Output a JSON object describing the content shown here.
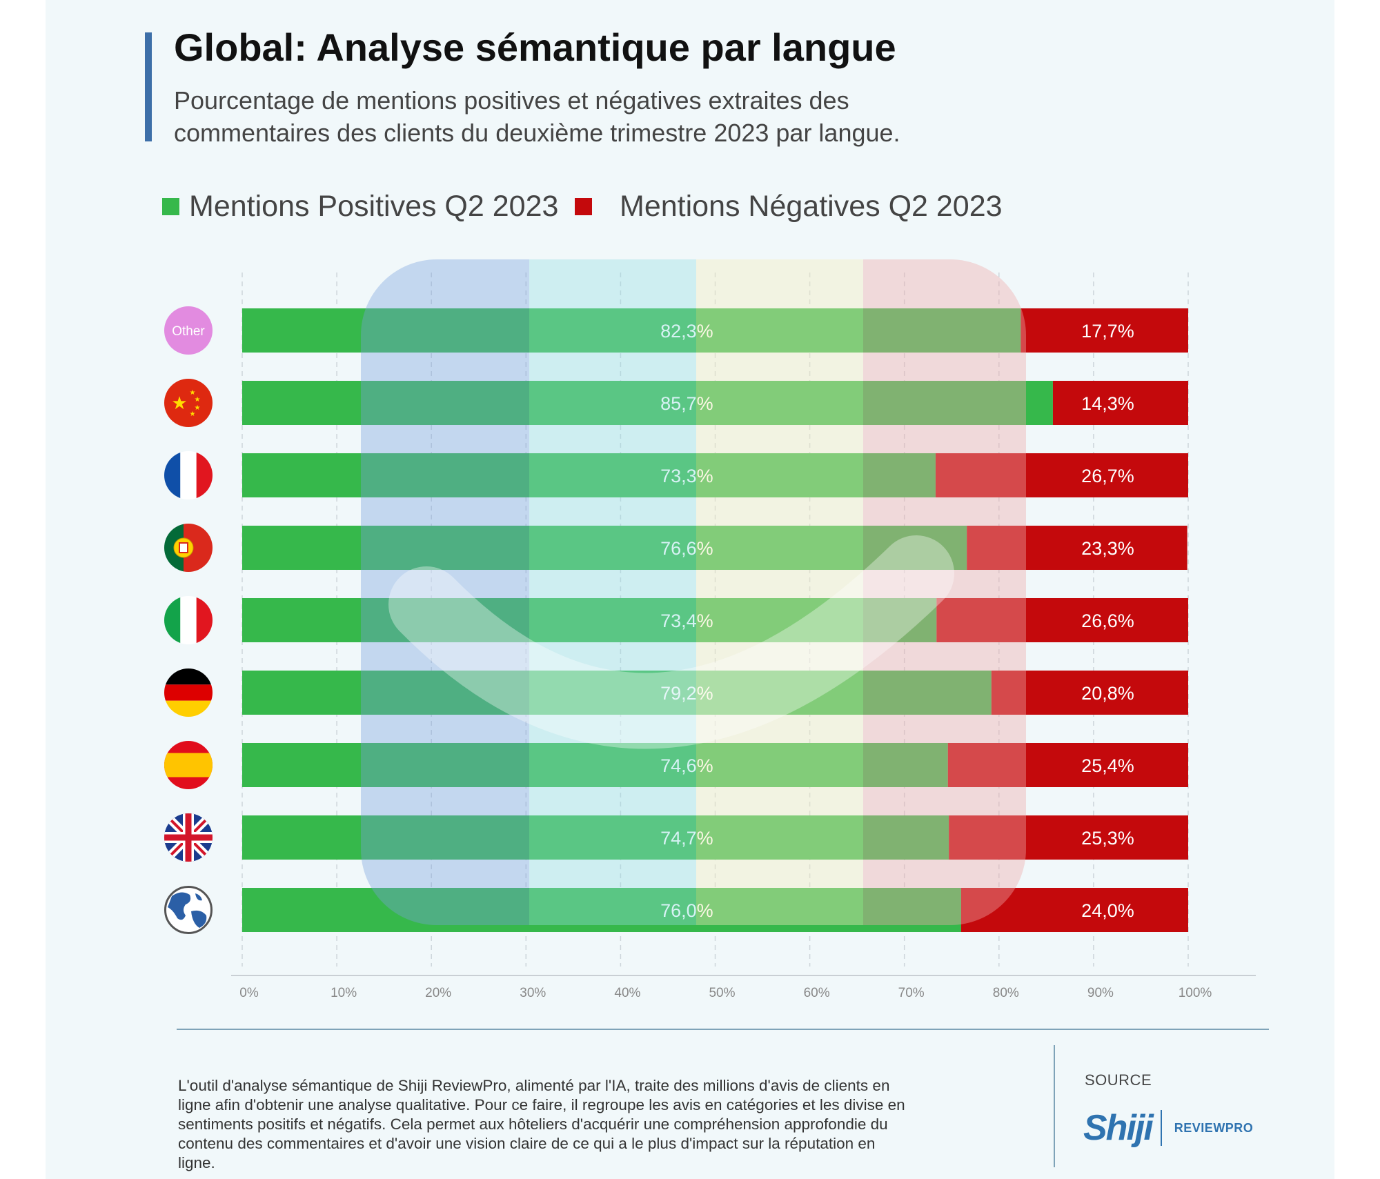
{
  "title": "Global: Analyse sémantique par langue",
  "subtitle": "Pourcentage de mentions positives et négatives extraites des commentaires des clients du deuxième trimestre 2023 par langue.",
  "colors": {
    "positive": "#36b84b",
    "negative": "#c4090c",
    "accent": "#3d6fa8",
    "background": "#f1f8fa"
  },
  "legend": {
    "positive_label": "Mentions Positives Q2 2023",
    "negative_label": "Mentions Négatives Q2 2023"
  },
  "chart_data": {
    "type": "bar",
    "orientation": "horizontal-stacked",
    "title": "Global: Analyse sémantique par langue",
    "categories": [
      "Other",
      "Chinois",
      "Français",
      "Portugais",
      "Italien",
      "Allemand",
      "Espagnol",
      "Anglais",
      "Global"
    ],
    "category_icons": [
      "other-badge",
      "china-flag-icon",
      "france-flag-icon",
      "portugal-flag-icon",
      "italy-flag-icon",
      "germany-flag-icon",
      "spain-flag-icon",
      "uk-flag-icon",
      "globe-icon"
    ],
    "series": [
      {
        "name": "Mentions Positives Q2 2023",
        "values": [
          82.3,
          85.7,
          73.3,
          76.6,
          73.4,
          79.2,
          74.6,
          74.7,
          76.0
        ],
        "labels": [
          "82,3%",
          "85,7%",
          "73,3%",
          "76,6%",
          "73,4%",
          "79,2%",
          "74,6%",
          "74,7%",
          "76,0%"
        ]
      },
      {
        "name": "Mentions Négatives Q2 2023",
        "values": [
          17.7,
          14.3,
          26.7,
          23.3,
          26.6,
          20.8,
          25.4,
          25.3,
          24.0
        ],
        "labels": [
          "17,7%",
          "14,3%",
          "26,7%",
          "23,3%",
          "26,6%",
          "20,8%",
          "25,4%",
          "25,3%",
          "24,0%"
        ]
      }
    ],
    "xlim": [
      0,
      100
    ],
    "xticks": [
      "0%",
      "10%",
      "20%",
      "30%",
      "40%",
      "50%",
      "60%",
      "70%",
      "80%",
      "90%",
      "100%"
    ],
    "grid": true,
    "legend_position": "top-left"
  },
  "other_badge_label": "Other",
  "footer": {
    "description": "L'outil d'analyse sémantique de Shiji ReviewPro, alimenté par l'IA, traite des millions d'avis de clients en ligne afin d'obtenir une analyse qualitative. Pour ce faire, il regroupe les avis en catégories et les divise en sentiments positifs et négatifs. Cela permet aux hôteliers d'acquérir une compréhension approfondie du contenu des commentaires et d'avoir une vision claire de ce qui a le plus d'impact sur la réputation en ligne.",
    "source_label": "SOURCE",
    "logo_main": "Shiji",
    "logo_sub": "REVIEWPRO"
  }
}
